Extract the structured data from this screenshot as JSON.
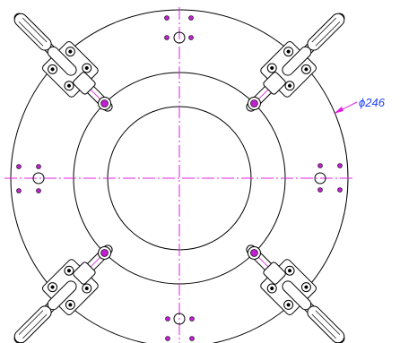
{
  "annotations": {
    "diameter": "ϕ246"
  }
}
